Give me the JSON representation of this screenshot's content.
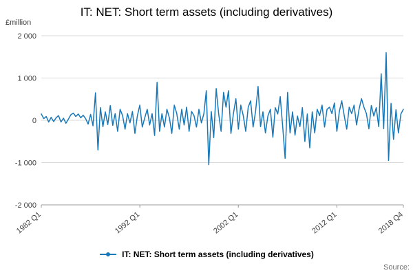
{
  "footer": {
    "source_label": "Source:"
  },
  "chart_data": {
    "type": "line",
    "title": "IT: NET: Short term assets (including derivatives)",
    "unit_label": "£million",
    "series_name": "IT: NET: Short term assets (including derivatives)",
    "line_color": "#1878b8",
    "grid_color": "#d9d9d9",
    "axis_color": "#9b9b9b",
    "tick_text_color": "#414042",
    "frequency": "quarterly",
    "x_start": "1982 Q1",
    "x_end": "2018 Q4",
    "n_points": 148,
    "ylim": [
      -2000,
      2000
    ],
    "yticks": [
      {
        "value": 2000,
        "label": "2 000"
      },
      {
        "value": 1000,
        "label": "1 000"
      },
      {
        "value": 0,
        "label": "0"
      },
      {
        "value": -1000,
        "label": "-1 000"
      },
      {
        "value": -2000,
        "label": "-2 000"
      }
    ],
    "xticks": [
      {
        "label": "1982 Q1",
        "index": 0
      },
      {
        "label": "1992 Q1",
        "index": 40
      },
      {
        "label": "2002 Q1",
        "index": 80
      },
      {
        "label": "2012 Q1",
        "index": 120
      },
      {
        "label": "2018 Q4",
        "index": 147
      }
    ],
    "values": [
      150,
      40,
      90,
      -40,
      70,
      -30,
      60,
      110,
      -40,
      50,
      -70,
      30,
      130,
      170,
      90,
      150,
      60,
      120,
      40,
      -90,
      140,
      -130,
      650,
      -700,
      300,
      -150,
      200,
      -100,
      350,
      -120,
      160,
      -260,
      260,
      110,
      -210,
      160,
      -60,
      210,
      -310,
      110,
      360,
      -160,
      60,
      260,
      -110,
      160,
      -360,
      900,
      -260,
      160,
      -160,
      260,
      60,
      -310,
      360,
      160,
      -210,
      260,
      -110,
      310,
      -260,
      210,
      110,
      -160,
      260,
      -60,
      160,
      700,
      -1050,
      210,
      -410,
      750,
      160,
      -260,
      660,
      310,
      700,
      -310,
      160,
      510,
      -210,
      360,
      110,
      -260,
      310,
      460,
      -160,
      210,
      800,
      -150,
      200,
      -300,
      100,
      260,
      -400,
      300,
      150,
      560,
      -150,
      -900,
      660,
      -300,
      200,
      -350,
      100,
      -150,
      300,
      -500,
      150,
      -650,
      200,
      -300,
      260,
      110,
      360,
      -160,
      260,
      310,
      160,
      410,
      -260,
      210,
      460,
      110,
      -210,
      310,
      160,
      360,
      -110,
      260,
      510,
      310,
      160,
      -200,
      350,
      100,
      300,
      -150,
      1100,
      -200,
      1600,
      -950,
      400,
      -450,
      250,
      -300,
      150,
      260
    ]
  }
}
